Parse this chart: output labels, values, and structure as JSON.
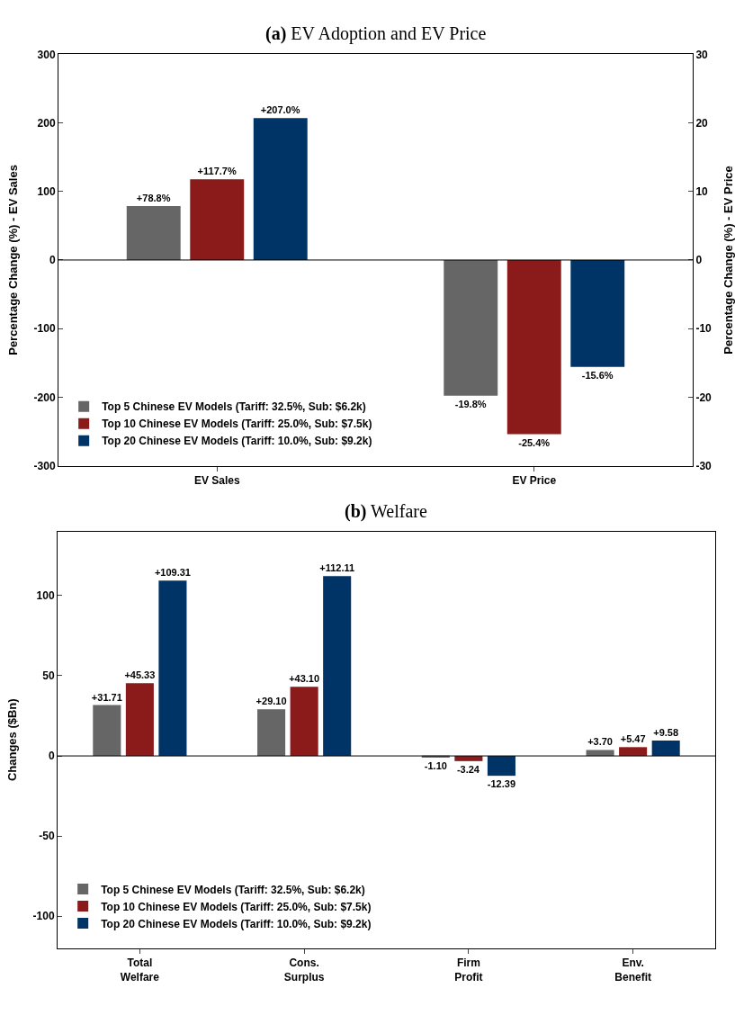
{
  "chart_data": [
    {
      "type": "bar",
      "title": "(a) EV Adoption and EV Price",
      "ylabel": "Percentage Change (%) - EV Sales",
      "y2label": "Percentage Change (%) - EV Price",
      "categories": [
        "EV Sales",
        "EV Price"
      ],
      "series": [
        {
          "name": "Top 5 Chinese EV Models (Tariff: 32.5%, Sub: $6.2k)",
          "color": "#666666",
          "values": [
            78.8,
            null
          ],
          "value_labels": [
            "+78.8%",
            null
          ]
        },
        {
          "name": "Top 10 Chinese EV Models (Tariff: 25.0%, Sub: $7.5k)",
          "color": "#8b1a1a",
          "values": [
            117.7,
            null
          ],
          "value_labels": [
            "+117.7%",
            null
          ]
        },
        {
          "name": "Top 20 Chinese EV Models (Tariff: 10.0%, Sub: $9.2k)",
          "color": "#003366",
          "values": [
            207.0,
            null
          ],
          "value_labels": [
            "+207.0%",
            null
          ]
        },
        {
          "color": "#666666",
          "axis": "y2",
          "values": [
            null,
            -19.8
          ],
          "value_labels": [
            null,
            "-19.8%"
          ]
        },
        {
          "color": "#8b1a1a",
          "axis": "y2",
          "values": [
            null,
            -25.4
          ],
          "value_labels": [
            null,
            "-25.4%"
          ]
        },
        {
          "color": "#003366",
          "axis": "y2",
          "values": [
            null,
            -15.6
          ],
          "value_labels": [
            null,
            "-15.6%"
          ]
        }
      ],
      "ylim": [
        -300,
        300
      ],
      "yticks": [
        -300,
        -200,
        -100,
        0,
        100,
        200,
        300
      ],
      "y2lim": [
        -30,
        30
      ],
      "y2ticks": [
        -30,
        -20,
        -10,
        0,
        10,
        20,
        30
      ],
      "ref_lines": [
        {
          "axis": "y",
          "value": 0,
          "color": "#000000"
        }
      ],
      "legend": "bottom left"
    },
    {
      "type": "bar",
      "title": "(b) Welfare",
      "ylabel": "Changes ($Bn)",
      "categories": [
        "Total\nWelfare",
        "Cons.\nSurplus",
        "Firm\nProfit",
        "Env.\nBenefit"
      ],
      "series": [
        {
          "name": "Top 5 Chinese EV Models (Tariff: 32.5%, Sub: $6.2k)",
          "color": "#666666",
          "values": [
            31.71,
            29.1,
            -1.1,
            3.7
          ],
          "value_labels": [
            "+31.71",
            "+29.10",
            "-1.10",
            "+3.70"
          ]
        },
        {
          "name": "Top 10 Chinese EV Models (Tariff: 25.0%, Sub: $7.5k)",
          "color": "#8b1a1a",
          "values": [
            45.33,
            43.1,
            -3.24,
            5.47
          ],
          "value_labels": [
            "+45.33",
            "+43.10",
            "-3.24",
            "+5.47"
          ]
        },
        {
          "name": "Top 20 Chinese EV Models (Tariff: 10.0%, Sub: $9.2k)",
          "color": "#003366",
          "values": [
            109.31,
            112.11,
            -12.39,
            9.58
          ],
          "value_labels": [
            "+109.31",
            "+112.11",
            "-12.39",
            "+9.58"
          ]
        }
      ],
      "ylim": [
        -120,
        140
      ],
      "yticks": [
        -100,
        -50,
        0,
        50,
        100
      ],
      "ref_lines": [
        {
          "axis": "y",
          "value": 0,
          "color": "#000000"
        }
      ],
      "legend": "bottom left"
    }
  ]
}
